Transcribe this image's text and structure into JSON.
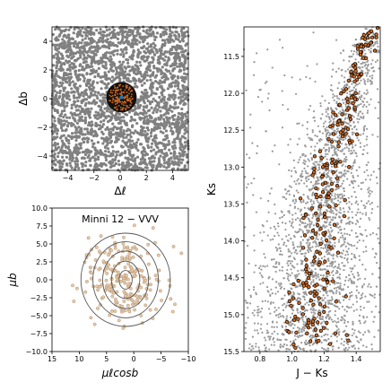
{
  "chart_data": [
    {
      "type": "scatter",
      "panel": "spatial",
      "xlabel": "Δℓ",
      "ylabel": "Δb",
      "xlim": [
        -5.2,
        5.2
      ],
      "ylim": [
        -5.0,
        5.0
      ],
      "xticks": [
        -4,
        -2,
        0,
        2,
        4
      ],
      "yticks": [
        -4,
        -2,
        0,
        2,
        4
      ],
      "field_color": "#808080",
      "member_color": "#d2691e",
      "center_color": "#1f77b4",
      "members_radius": 0.95,
      "center_point": [
        0.1,
        0.1
      ]
    },
    {
      "type": "scatter",
      "panel": "proper_motion",
      "title": "Minni 12  −  VVV",
      "xlabel": "μℓcosb",
      "ylabel": "μb",
      "xlim": [
        15,
        -10
      ],
      "ylim": [
        -10.0,
        10.0
      ],
      "xticks": [
        15,
        10,
        5,
        0,
        -5,
        -10
      ],
      "yticks": [
        -10.0,
        -7.5,
        -5.0,
        -2.5,
        0.0,
        2.5,
        5.0,
        7.5,
        10.0
      ],
      "contour_center": [
        1.5,
        0.0
      ],
      "contour_levels": [
        {
          "rx": 1.2,
          "ry": 1.3
        },
        {
          "rx": 2.6,
          "ry": 2.6
        },
        {
          "rx": 4.2,
          "ry": 4.0
        },
        {
          "rx": 6.0,
          "ry": 5.3
        },
        {
          "rx": 8.2,
          "ry": 6.5
        }
      ],
      "point_color": "#e8c9a8"
    },
    {
      "type": "scatter",
      "panel": "cmd",
      "xlabel": "J − Ks",
      "ylabel": "Ks",
      "xlim": [
        0.7,
        1.55
      ],
      "ylim": [
        15.5,
        11.1
      ],
      "xticks": [
        0.8,
        1.0,
        1.2,
        1.4
      ],
      "yticks": [
        11.5,
        12.0,
        12.5,
        13.0,
        13.5,
        14.0,
        14.5,
        15.0,
        15.5
      ],
      "field_color": "#9a9a9a",
      "member_color": "#d2691e",
      "ridge": [
        [
          11.1,
          1.5
        ],
        [
          12.0,
          1.37
        ],
        [
          13.0,
          1.23
        ],
        [
          14.0,
          1.17
        ],
        [
          15.0,
          1.12
        ],
        [
          15.5,
          1.1
        ]
      ]
    }
  ]
}
